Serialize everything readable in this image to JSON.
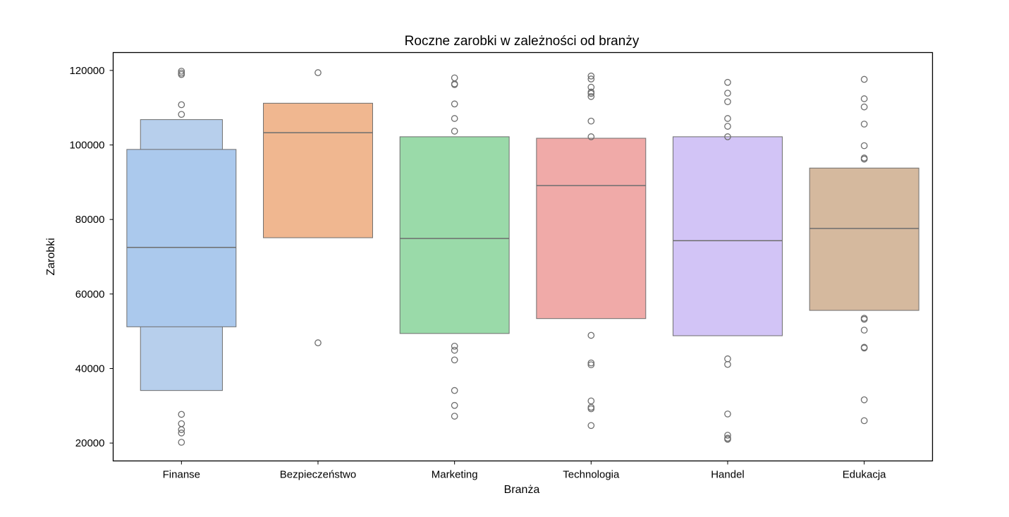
{
  "chart_data": {
    "type": "boxen",
    "title": "Roczne zarobki w zależności od branży",
    "xlabel": "Branża",
    "ylabel": "Zarobki",
    "ylim": [
      15200,
      124800
    ],
    "yticks": [
      20000,
      40000,
      60000,
      80000,
      100000,
      120000
    ],
    "grid": false,
    "colors": {
      "axis": "#000000",
      "box_edge": "#6e6e6e",
      "median": "#6e6e6e",
      "outlier": "#6e6e6e"
    },
    "categories": [
      {
        "name": "Finanse",
        "color": "#a1c9f4",
        "median": 72500,
        "boxes": [
          {
            "low": 51200,
            "high": 98800,
            "color": "#abc9ed"
          },
          {
            "low": 34100,
            "high": 106800,
            "color": "#b7cfec"
          }
        ],
        "outliers": [
          119800,
          119300,
          118900,
          110800,
          108200,
          27700,
          25200,
          23600,
          22700,
          20200
        ]
      },
      {
        "name": "Bezpieczeństwo",
        "color": "#ffb482",
        "median": 103300,
        "boxes": [
          {
            "low": 75100,
            "high": 111200,
            "color": "#f0b790"
          }
        ],
        "outliers": [
          119400,
          46900
        ]
      },
      {
        "name": "Marketing",
        "color": "#8de5a1",
        "median": 74900,
        "boxes": [
          {
            "low": 49400,
            "high": 102200,
            "color": "#9adaa9"
          }
        ],
        "outliers": [
          118000,
          116400,
          116200,
          111000,
          107100,
          103700,
          46000,
          44900,
          42300,
          34100,
          30100,
          27200
        ]
      },
      {
        "name": "Technologia",
        "color": "#ff9f9b",
        "median": 89100,
        "boxes": [
          {
            "low": 53400,
            "high": 101800,
            "color": "#f0aaa8"
          }
        ],
        "outliers": [
          118500,
          117700,
          115500,
          114200,
          113800,
          113000,
          106400,
          102200,
          48900,
          41500,
          41000,
          31300,
          29600,
          29200,
          24700
        ]
      },
      {
        "name": "Handel",
        "color": "#d0bbff",
        "median": 74300,
        "boxes": [
          {
            "low": 48800,
            "high": 102200,
            "color": "#d2c4f6"
          }
        ],
        "outliers": [
          116800,
          113900,
          111600,
          107100,
          105000,
          102200,
          42600,
          41100,
          27800,
          22100,
          21300,
          21000
        ]
      },
      {
        "name": "Edukacja",
        "color": "#debb9b",
        "median": 77600,
        "boxes": [
          {
            "low": 55600,
            "high": 93800,
            "color": "#d5b99e"
          }
        ],
        "outliers": [
          117600,
          112400,
          110200,
          105600,
          99800,
          96500,
          96200,
          53500,
          53200,
          50300,
          45700,
          45500,
          31600,
          26000
        ]
      }
    ]
  }
}
